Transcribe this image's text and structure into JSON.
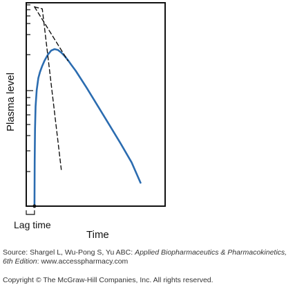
{
  "chart_data": {
    "type": "line",
    "title": "",
    "xlabel": "Time",
    "ylabel": "Plasma level",
    "annotations": {
      "lag_label": "Lag time"
    },
    "xlim": [
      0,
      12
    ],
    "ylim": [
      0,
      10
    ],
    "lag_time": 0.3,
    "grid": false,
    "series": [
      {
        "style": "solid",
        "color": "#2b6cb0",
        "x": [
          0.3,
          0.32,
          0.35,
          0.4,
          0.5,
          0.65,
          0.8,
          1.0,
          1.2,
          1.5,
          1.8,
          2.1,
          2.4,
          2.7,
          3.0,
          3.3,
          3.6,
          4.0,
          5.0,
          6.0,
          7.0,
          8.0,
          9.0,
          9.8
        ],
        "y": [
          0.0,
          2.2,
          3.8,
          4.9,
          5.7,
          6.3,
          6.6,
          6.9,
          7.15,
          7.45,
          7.65,
          7.72,
          7.68,
          7.55,
          7.38,
          7.18,
          6.95,
          6.65,
          5.8,
          4.9,
          4.0,
          3.1,
          2.15,
          1.15
        ]
      },
      {
        "style": "dashed",
        "color": "#111111",
        "x": [
          0.3,
          3.3
        ],
        "y": [
          9.8,
          7.15
        ]
      },
      {
        "style": "dashed",
        "color": "#111111",
        "x": [
          0.3,
          1.0,
          2.7
        ],
        "y": [
          9.8,
          9.7,
          1.8
        ]
      }
    ]
  },
  "source": {
    "prefix": "Source: Shargel L, Wu-Pong S, Yu ABC: ",
    "title_italic": "Applied Biopharmaceutics & Pharmacokinetics,",
    "edition_italic": "6th Edition",
    "suffix": ": www.accesspharmacy.com"
  },
  "copyright": "Copyright © The McGraw-Hill Companies, Inc. All rights reserved."
}
